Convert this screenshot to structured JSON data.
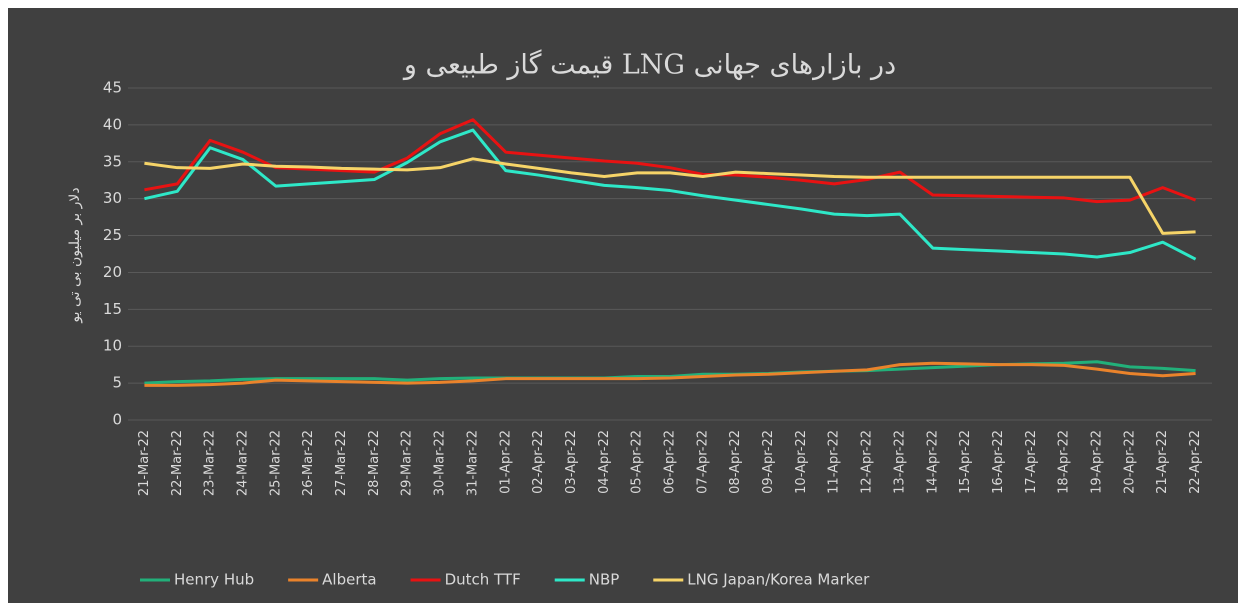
{
  "chart_data": {
    "type": "line",
    "title": "قیمت گاز طبیعی و LNG در بازارهای جهانی",
    "y_label": "دلار بر میلیون بی تی یو",
    "categories": [
      "21-Mar-22",
      "22-Mar-22",
      "23-Mar-22",
      "24-Mar-22",
      "25-Mar-22",
      "26-Mar-22",
      "27-Mar-22",
      "28-Mar-22",
      "29-Mar-22",
      "30-Mar-22",
      "31-Mar-22",
      "01-Apr-22",
      "02-Apr-22",
      "03-Apr-22",
      "04-Apr-22",
      "05-Apr-22",
      "06-Apr-22",
      "07-Apr-22",
      "08-Apr-22",
      "09-Apr-22",
      "10-Apr-22",
      "11-Apr-22",
      "12-Apr-22",
      "13-Apr-22",
      "14-Apr-22",
      "15-Apr-22",
      "16-Apr-22",
      "17-Apr-22",
      "18-Apr-22",
      "19-Apr-22",
      "20-Apr-22",
      "21-Apr-22",
      "22-Apr-22"
    ],
    "series": [
      {
        "name": "Henry Hub",
        "color": "#22b07a",
        "values": [
          5.0,
          5.2,
          5.3,
          5.5,
          5.6,
          5.6,
          5.6,
          5.6,
          5.4,
          5.6,
          5.7,
          5.7,
          5.7,
          5.7,
          5.7,
          5.9,
          5.9,
          6.2,
          6.2,
          6.3,
          6.5,
          6.6,
          6.7,
          6.9,
          7.1,
          7.3,
          7.5,
          7.6,
          7.7,
          7.9,
          7.2,
          7.0,
          6.7
        ]
      },
      {
        "name": "Alberta",
        "color": "#ea832b",
        "values": [
          4.7,
          4.7,
          4.8,
          5.0,
          5.4,
          5.3,
          5.2,
          5.1,
          5.0,
          5.1,
          5.3,
          5.6,
          5.6,
          5.6,
          5.6,
          5.6,
          5.7,
          5.9,
          6.1,
          6.2,
          6.4,
          6.6,
          6.8,
          7.5,
          7.7,
          7.6,
          7.5,
          7.5,
          7.4,
          6.9,
          6.3,
          6.0,
          6.3
        ]
      },
      {
        "name": "Dutch TTF",
        "color": "#e81212",
        "values": [
          31.2,
          32.0,
          37.9,
          36.3,
          34.2,
          34.0,
          33.8,
          33.6,
          35.5,
          38.8,
          40.7,
          36.3,
          35.9,
          35.5,
          35.1,
          34.8,
          34.2,
          33.3,
          33.2,
          32.9,
          32.5,
          32.0,
          32.6,
          33.6,
          30.5,
          30.4,
          30.3,
          30.2,
          30.1,
          29.6,
          29.8,
          31.5,
          29.8
        ]
      },
      {
        "name": "NBP",
        "color": "#2ee8c8",
        "values": [
          30.0,
          31.0,
          36.9,
          35.3,
          31.7,
          32.0,
          32.3,
          32.6,
          34.9,
          37.7,
          39.3,
          33.8,
          33.2,
          32.5,
          31.8,
          31.5,
          31.1,
          30.4,
          29.8,
          29.2,
          28.6,
          27.9,
          27.7,
          27.9,
          23.3,
          23.1,
          22.9,
          22.7,
          22.5,
          22.1,
          22.7,
          24.1,
          21.8
        ]
      },
      {
        "name": "LNG Japan/Korea Marker",
        "color": "#f6d468",
        "values": [
          34.8,
          34.2,
          34.1,
          34.7,
          34.4,
          34.3,
          34.1,
          34.0,
          33.9,
          34.2,
          35.4,
          34.7,
          34.1,
          33.5,
          33.0,
          33.5,
          33.5,
          33.0,
          33.6,
          33.4,
          33.2,
          33.0,
          32.9,
          32.9,
          32.9,
          32.9,
          32.9,
          32.9,
          32.9,
          32.9,
          32.9,
          25.3,
          25.5
        ]
      }
    ],
    "ylim": [
      0,
      45
    ],
    "yticks": [
      0,
      5,
      10,
      15,
      20,
      25,
      30,
      35,
      40,
      45
    ],
    "grid": true,
    "legend": "bottom"
  }
}
